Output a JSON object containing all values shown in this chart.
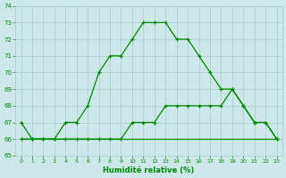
{
  "xlabel": "Humidité relative (%)",
  "ylim": [
    65,
    74
  ],
  "xlim": [
    -0.5,
    23.5
  ],
  "yticks": [
    65,
    66,
    67,
    68,
    69,
    70,
    71,
    72,
    73,
    74
  ],
  "xticks": [
    0,
    1,
    2,
    3,
    4,
    5,
    6,
    7,
    8,
    9,
    10,
    11,
    12,
    13,
    14,
    15,
    16,
    17,
    18,
    19,
    20,
    21,
    22,
    23
  ],
  "background_color": "#cce8e8",
  "grid_color": "#aacccc",
  "line_color": "#008800",
  "line1_x": [
    0,
    1,
    2,
    3,
    4,
    5,
    6,
    7,
    8,
    9,
    10,
    11,
    12,
    13,
    14,
    15,
    16,
    17,
    18,
    19,
    20,
    21,
    22,
    23
  ],
  "line1_y": [
    67,
    66,
    66,
    66,
    67,
    67,
    68,
    70,
    71,
    71,
    72,
    73,
    73,
    73,
    72,
    72,
    71,
    70,
    69,
    69,
    68,
    67,
    67,
    66
  ],
  "line2_x": [
    0,
    1,
    2,
    3,
    4,
    5,
    6,
    7,
    8,
    9,
    10,
    11,
    12,
    13,
    14,
    15,
    16,
    17,
    18,
    19,
    20,
    21,
    22,
    23
  ],
  "line2_y": [
    66,
    66,
    66,
    66,
    66,
    66,
    66,
    66,
    66,
    66,
    67,
    67,
    67,
    68,
    68,
    68,
    68,
    68,
    68,
    69,
    68,
    67,
    67,
    66
  ],
  "line3_x": [
    0,
    23
  ],
  "line3_y": [
    66,
    66
  ]
}
